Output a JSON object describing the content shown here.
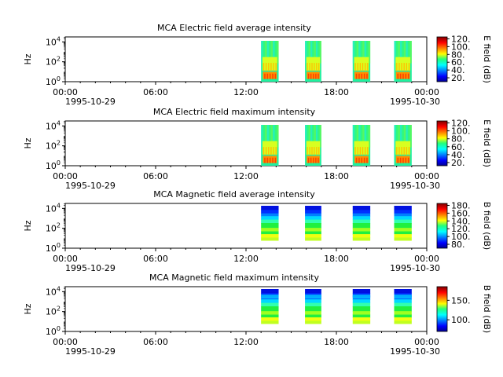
{
  "chart_data": [
    {
      "type": "heatmap",
      "title": "MCA  Electric field average intensity",
      "ylabel": "Hz",
      "x_tick_labels": [
        "00:00",
        "06:00",
        "12:00",
        "18:00",
        "00:00"
      ],
      "x_date_labels": [
        "1995-10-29",
        "1995-10-30"
      ],
      "y_tick_labels": [
        "10^0",
        "10^2",
        "10^4"
      ],
      "colorbar": {
        "label": "E field (dB)",
        "range": [
          10,
          125
        ],
        "tick_labels": [
          "20.",
          "40.",
          "60.",
          "80.",
          "100.",
          "120."
        ]
      },
      "data_blocks": [
        [
          "13:00",
          "14:10"
        ],
        [
          "15:55",
          "17:00"
        ],
        [
          "19:05",
          "20:15"
        ],
        [
          "21:50",
          "23:00"
        ]
      ],
      "colormap": "jet"
    },
    {
      "type": "heatmap",
      "title": "MCA  Electric field maximum intensity",
      "ylabel": "Hz",
      "x_tick_labels": [
        "00:00",
        "06:00",
        "12:00",
        "18:00",
        "00:00"
      ],
      "x_date_labels": [
        "1995-10-29",
        "1995-10-30"
      ],
      "y_tick_labels": [
        "10^0",
        "10^2",
        "10^4"
      ],
      "colorbar": {
        "label": "E field (dB)",
        "range": [
          12,
          125
        ],
        "tick_labels": [
          "20.",
          "40.",
          "60.",
          "80.",
          "100.",
          "120."
        ]
      },
      "data_blocks": [
        [
          "13:00",
          "14:10"
        ],
        [
          "15:55",
          "17:00"
        ],
        [
          "19:05",
          "20:15"
        ],
        [
          "21:50",
          "23:00"
        ]
      ],
      "colormap": "jet"
    },
    {
      "type": "heatmap",
      "title": "MCA  Magnetic field average intensity",
      "ylabel": "Hz",
      "x_tick_labels": [
        "00:00",
        "06:00",
        "12:00",
        "18:00",
        "00:00"
      ],
      "x_date_labels": [
        "1995-10-29",
        "1995-10-30"
      ],
      "y_tick_labels": [
        "10^0",
        "10^2",
        "10^4"
      ],
      "colorbar": {
        "label": "B field (dB)",
        "range": [
          70,
          185
        ],
        "tick_labels": [
          "80.",
          "100.",
          "120.",
          "140.",
          "160.",
          "180."
        ]
      },
      "data_blocks": [
        [
          "13:00",
          "14:10"
        ],
        [
          "15:55",
          "17:00"
        ],
        [
          "19:05",
          "20:15"
        ],
        [
          "21:50",
          "23:00"
        ]
      ],
      "colormap": "jet"
    },
    {
      "type": "heatmap",
      "title": "MCA  Magnetic field maximum intensity",
      "ylabel": "Hz",
      "x_tick_labels": [
        "00:00",
        "06:00",
        "12:00",
        "18:00",
        "00:00"
      ],
      "x_date_labels": [
        "1995-10-29",
        "1995-10-30"
      ],
      "y_tick_labels": [
        "10^0",
        "10^2",
        "10^4"
      ],
      "colorbar": {
        "label": "B field (dB)",
        "range": [
          70,
          185
        ],
        "tick_labels": [
          "100.",
          "150."
        ]
      },
      "data_blocks": [
        [
          "13:00",
          "14:10"
        ],
        [
          "15:55",
          "17:00"
        ],
        [
          "19:05",
          "20:15"
        ],
        [
          "21:50",
          "23:00"
        ]
      ],
      "colormap": "jet"
    }
  ]
}
